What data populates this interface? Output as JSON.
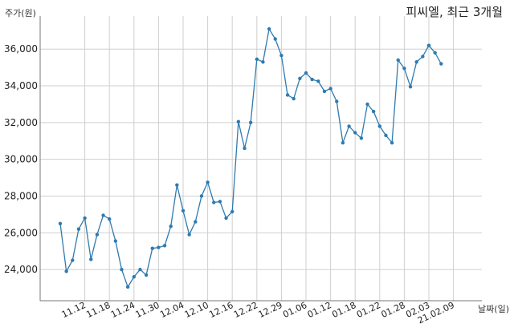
{
  "chart_data": {
    "type": "line",
    "title": "피씨엘, 최근 3개월",
    "xlabel": "날짜(일)",
    "ylabel": "주가(원)",
    "ylim": [
      22300,
      37800
    ],
    "yticks": [
      24000,
      26000,
      28000,
      30000,
      32000,
      34000,
      36000
    ],
    "ytick_labels": [
      "24,000",
      "26,000",
      "28,000",
      "30,000",
      "32,000",
      "34,000",
      "36,000"
    ],
    "xtick_labels": [
      "11.12",
      "11.18",
      "11.24",
      "11.30",
      "12.04",
      "12.10",
      "12.16",
      "12.22",
      "12.29",
      "01.06",
      "01.12",
      "01.18",
      "01.22",
      "01.28",
      "02.03",
      "21.02.09"
    ],
    "xtick_positions": [
      4,
      8,
      12,
      16,
      20,
      24,
      28,
      32,
      36,
      40,
      44,
      48,
      52,
      56,
      60,
      64
    ],
    "grid": true,
    "line_color": "#2e7bb0",
    "series": [
      {
        "values": [
          26500,
          23900,
          24500,
          26200,
          26800,
          24550,
          25900,
          26950,
          26750,
          25550,
          24000,
          23050,
          23600,
          24000,
          23700,
          25150,
          25200,
          25300,
          26350,
          28600,
          27200,
          25900,
          26600,
          28000,
          28750,
          27650,
          27700,
          26800,
          27150,
          32050,
          30600,
          32000,
          35450,
          35300,
          37100,
          36550,
          35650,
          33500,
          33300,
          34400,
          34700,
          34350,
          34250,
          33700,
          33850,
          33150,
          30900,
          31800,
          31450,
          31150,
          33000,
          32600,
          31800,
          31300,
          30900,
          35400,
          34950,
          33950,
          35300,
          35600,
          36200,
          35800,
          35200
        ]
      }
    ]
  }
}
